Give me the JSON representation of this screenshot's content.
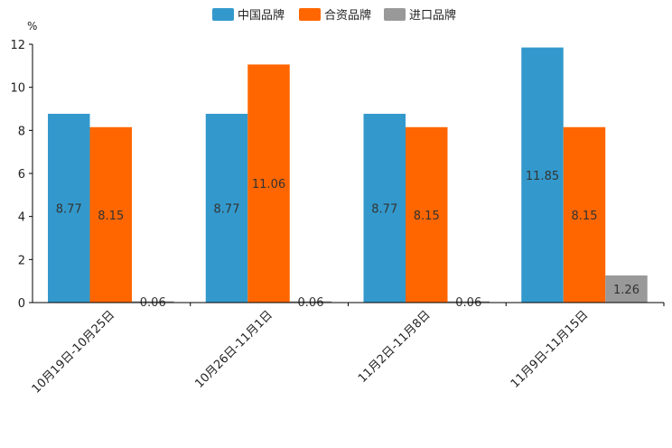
{
  "chart_data": {
    "type": "bar",
    "unit": "%",
    "categories": [
      "10月19日-10月25日",
      "10月26日-11月1日",
      "11月2日-11月8日",
      "11月9日-11月15日"
    ],
    "series": [
      {
        "name": "中国品牌",
        "color": "#3399cc",
        "values": [
          8.77,
          8.77,
          8.77,
          11.85
        ],
        "labels": [
          "8.77",
          "8.77",
          "8.77",
          "11.85"
        ]
      },
      {
        "name": "合资品牌",
        "color": "#ff6600",
        "values": [
          8.15,
          11.06,
          8.15,
          8.15
        ],
        "labels": [
          "8.15",
          "11.06",
          "8.15",
          "8.15"
        ]
      },
      {
        "name": "进口品牌",
        "color": "#999999",
        "values": [
          0.06,
          0.06,
          0.06,
          1.26
        ],
        "labels": [
          "0.06",
          "0.06",
          "0.06",
          "1.26"
        ]
      }
    ],
    "ylim": [
      0,
      12
    ],
    "yticks": [
      "0",
      "2",
      "4",
      "6",
      "8",
      "10",
      "12"
    ],
    "legend_position": "top-center",
    "grid": false
  }
}
